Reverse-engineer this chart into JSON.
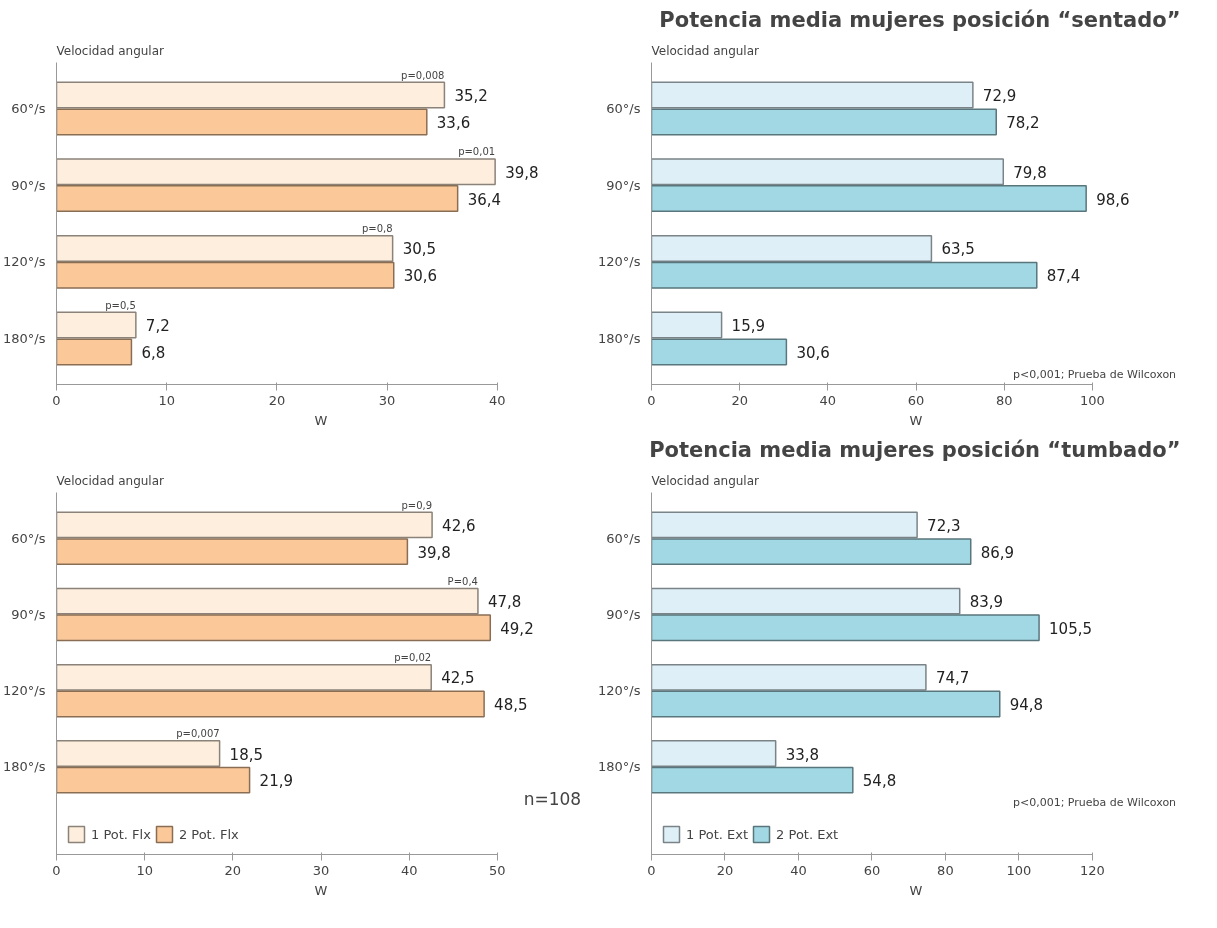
{
  "chart_data": [
    {
      "type": "bar",
      "orientation": "horizontal",
      "ylabel": "Velocidad angular",
      "xlabel": "W",
      "categories": [
        "60°/s",
        "90°/s",
        "120°/s",
        "180°/s"
      ],
      "xlim": [
        0,
        40
      ],
      "xticks": [
        0,
        10,
        20,
        30,
        40
      ],
      "grid": false,
      "legend": false,
      "series": [
        {
          "color": "#fdeedd",
          "values": [
            35.2,
            39.8,
            30.5,
            7.2
          ],
          "value_labels": [
            "35,2",
            "39,8",
            "30,5",
            "7,2"
          ]
        },
        {
          "color": "#fbc89a",
          "values": [
            33.6,
            36.4,
            30.6,
            6.8
          ],
          "value_labels": [
            "33,6",
            "36,4",
            "30,6",
            "6,8"
          ]
        }
      ],
      "annotations": [
        {
          "text": "p=0,008",
          "x": 35.2,
          "y": "60°/s"
        },
        {
          "text": "p=0,01",
          "x": 39.8,
          "y": "90°/s"
        },
        {
          "text": "p=0,8",
          "x": 30.5,
          "y": "120°/s"
        },
        {
          "text": "p=0,5",
          "x": 7.2,
          "y": "180°/s"
        }
      ]
    },
    {
      "type": "bar",
      "orientation": "horizontal",
      "title": "Potencia media mujeres posición “sentado”",
      "ylabel": "Velocidad angular",
      "xlabel": "W",
      "categories": [
        "60°/s",
        "90°/s",
        "120°/s",
        "180°/s"
      ],
      "xlim": [
        0,
        100
      ],
      "xticks": [
        0,
        20,
        40,
        60,
        80,
        100
      ],
      "grid": false,
      "legend": false,
      "series": [
        {
          "color": "#dfeff7",
          "values": [
            72.9,
            79.8,
            63.5,
            15.9
          ],
          "value_labels": [
            "72,9",
            "79,8",
            "63,5",
            "15,9"
          ]
        },
        {
          "color": "#a2d8e3",
          "values": [
            78.2,
            98.6,
            87.4,
            30.6
          ],
          "value_labels": [
            "78,2",
            "98,6",
            "87,4",
            "30,6"
          ]
        }
      ],
      "annotations": [
        "p<0,001; Prueba de Wilcoxon"
      ]
    },
    {
      "type": "bar",
      "orientation": "horizontal",
      "ylabel": "Velocidad angular",
      "xlabel": "W",
      "categories": [
        "60°/s",
        "90°/s",
        "120°/s",
        "180°/s"
      ],
      "xlim": [
        0,
        50
      ],
      "xticks": [
        0,
        10,
        20,
        30,
        40,
        50
      ],
      "grid": false,
      "legend": "bottom",
      "series": [
        {
          "name": "1 Pot. Flx",
          "color": "#fdeedd",
          "values": [
            42.6,
            47.8,
            42.5,
            18.5
          ],
          "value_labels": [
            "42,6",
            "47,8",
            "42,5",
            "18,5"
          ]
        },
        {
          "name": "2 Pot. Flx",
          "color": "#fbc89a",
          "values": [
            39.8,
            49.2,
            48.5,
            21.9
          ],
          "value_labels": [
            "39,8",
            "49,2",
            "48,5",
            "21,9"
          ]
        }
      ],
      "annotations": [
        {
          "text": "p=0,9",
          "x": 42.6,
          "y": "60°/s"
        },
        {
          "text": "P=0,4",
          "x": 47.8,
          "y": "90°/s"
        },
        {
          "text": "p=0,02",
          "x": 42.5,
          "y": "120°/s"
        },
        {
          "text": "p=0,007",
          "x": 18.5,
          "y": "180°/s"
        },
        "n=108"
      ]
    },
    {
      "type": "bar",
      "orientation": "horizontal",
      "title": "Potencia media mujeres posición “tumbado”",
      "ylabel": "Velocidad angular",
      "xlabel": "W",
      "categories": [
        "60°/s",
        "90°/s",
        "120°/s",
        "180°/s"
      ],
      "xlim": [
        0,
        120
      ],
      "xticks": [
        0,
        20,
        40,
        60,
        80,
        100,
        120
      ],
      "grid": false,
      "legend": "bottom",
      "series": [
        {
          "name": "1 Pot. Ext",
          "color": "#dfeff7",
          "values": [
            72.3,
            83.9,
            74.7,
            33.8
          ],
          "value_labels": [
            "72,3",
            "83,9",
            "74,7",
            "33,8"
          ]
        },
        {
          "name": "2 Pot. Ext",
          "color": "#a2d8e3",
          "values": [
            86.9,
            105.5,
            94.8,
            54.8
          ],
          "value_labels": [
            "86,9",
            "105,5",
            "94,8",
            "54,8"
          ]
        }
      ],
      "annotations": [
        "p<0,001; Prueba de Wilcoxon"
      ]
    }
  ]
}
